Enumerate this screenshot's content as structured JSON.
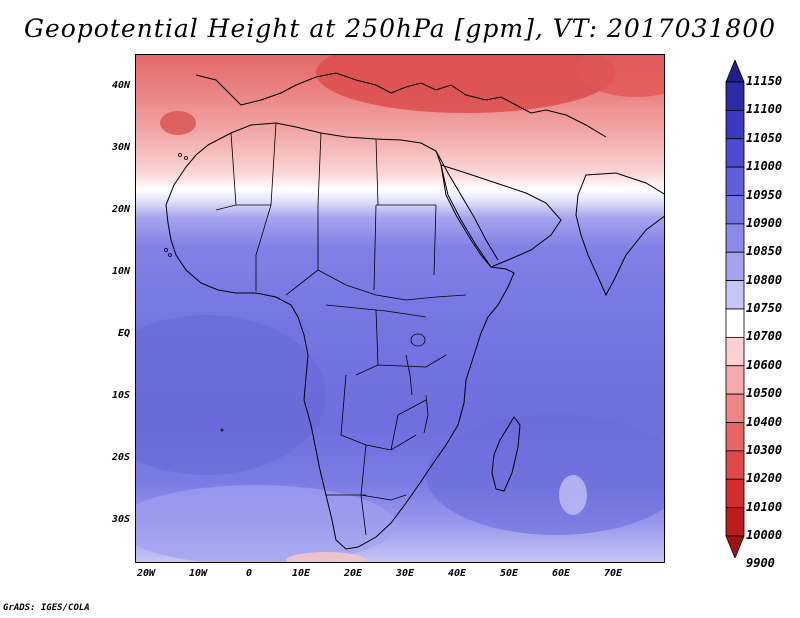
{
  "title": "Geopotential Height at 250hPa [gpm], VT: 2017031800",
  "credit": "GrADS: IGES/COLA",
  "lat_labels": [
    "40N",
    "30N",
    "20N",
    "10N",
    "EQ",
    "10S",
    "20S",
    "30S"
  ],
  "lon_labels": [
    "20W",
    "10W",
    "0",
    "10E",
    "20E",
    "30E",
    "40E",
    "50E",
    "60E",
    "70E"
  ],
  "colorbar": {
    "levels": [
      "11150",
      "11100",
      "11050",
      "11000",
      "10950",
      "10900",
      "10850",
      "10800",
      "10750",
      "10700",
      "10600",
      "10500",
      "10400",
      "10300",
      "10200",
      "10100",
      "10000",
      "9900"
    ],
    "colors": [
      "#1e1e8c",
      "#2b2ba8",
      "#3a3ac0",
      "#4c4cd2",
      "#5f5fdc",
      "#7373e2",
      "#8a8ae8",
      "#a4a4ee",
      "#c6c6f4",
      "#ffffff",
      "#fbd0d0",
      "#f4aaaa",
      "#ee8686",
      "#e66666",
      "#de4848",
      "#d22c2c",
      "#bc1c1c",
      "#9e1414"
    ]
  },
  "map_colors": {
    "background": "#7676e6",
    "deep_blue": "#6b6bdc",
    "light_blue": "#8c8cf0",
    "pale_blue": "#d9d9f8",
    "white_band": "#ffffff",
    "pink": "#f8c8c8",
    "light_red": "#ef9a9a",
    "red": "#e07070",
    "dark_red": "#d84848"
  }
}
